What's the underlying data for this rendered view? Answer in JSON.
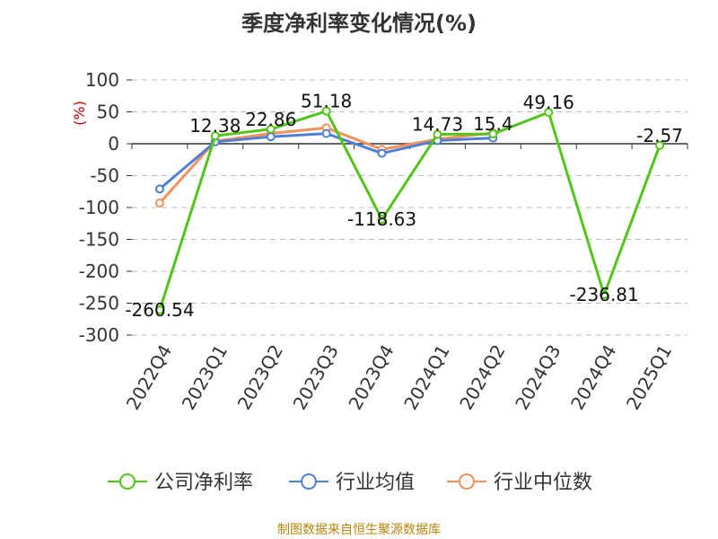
{
  "chart_data": {
    "type": "line",
    "title": "季度净利率变化情况(%)",
    "ylabel": "(%)",
    "categories": [
      "2022Q4",
      "2023Q1",
      "2023Q2",
      "2023Q3",
      "2023Q4",
      "2024Q1",
      "2024Q2",
      "2024Q3",
      "2024Q4",
      "2025Q1"
    ],
    "y_ticks": [
      "100",
      "50",
      "0",
      "-50",
      "-100",
      "-150",
      "-200",
      "-250",
      "-300"
    ],
    "ylim": [
      -300,
      100
    ],
    "grid": true,
    "legend_position": "bottom",
    "series": [
      {
        "name": "公司净利率",
        "color": "#52c41a",
        "values": [
          -260.54,
          12.38,
          22.86,
          51.18,
          -118.63,
          14.73,
          15.4,
          49.16,
          -236.81,
          -2.57
        ],
        "data_labels": [
          "-260.54",
          "12.38",
          "22.86",
          "51.18",
          "-118.63",
          "14.73",
          "15.4",
          "49.16",
          "-236.81",
          "-2.57"
        ]
      },
      {
        "name": "行业均值",
        "color": "#4e7ed6",
        "values": [
          -71,
          3,
          11,
          16,
          -15,
          5,
          9,
          null,
          null,
          null
        ]
      },
      {
        "name": "行业中位数",
        "color": "#f4915a",
        "values": [
          -93,
          4,
          16,
          25,
          -9,
          7,
          17,
          null,
          null,
          null
        ]
      }
    ]
  },
  "footer": {
    "source": "制图数据来自恒生聚源数据库"
  }
}
